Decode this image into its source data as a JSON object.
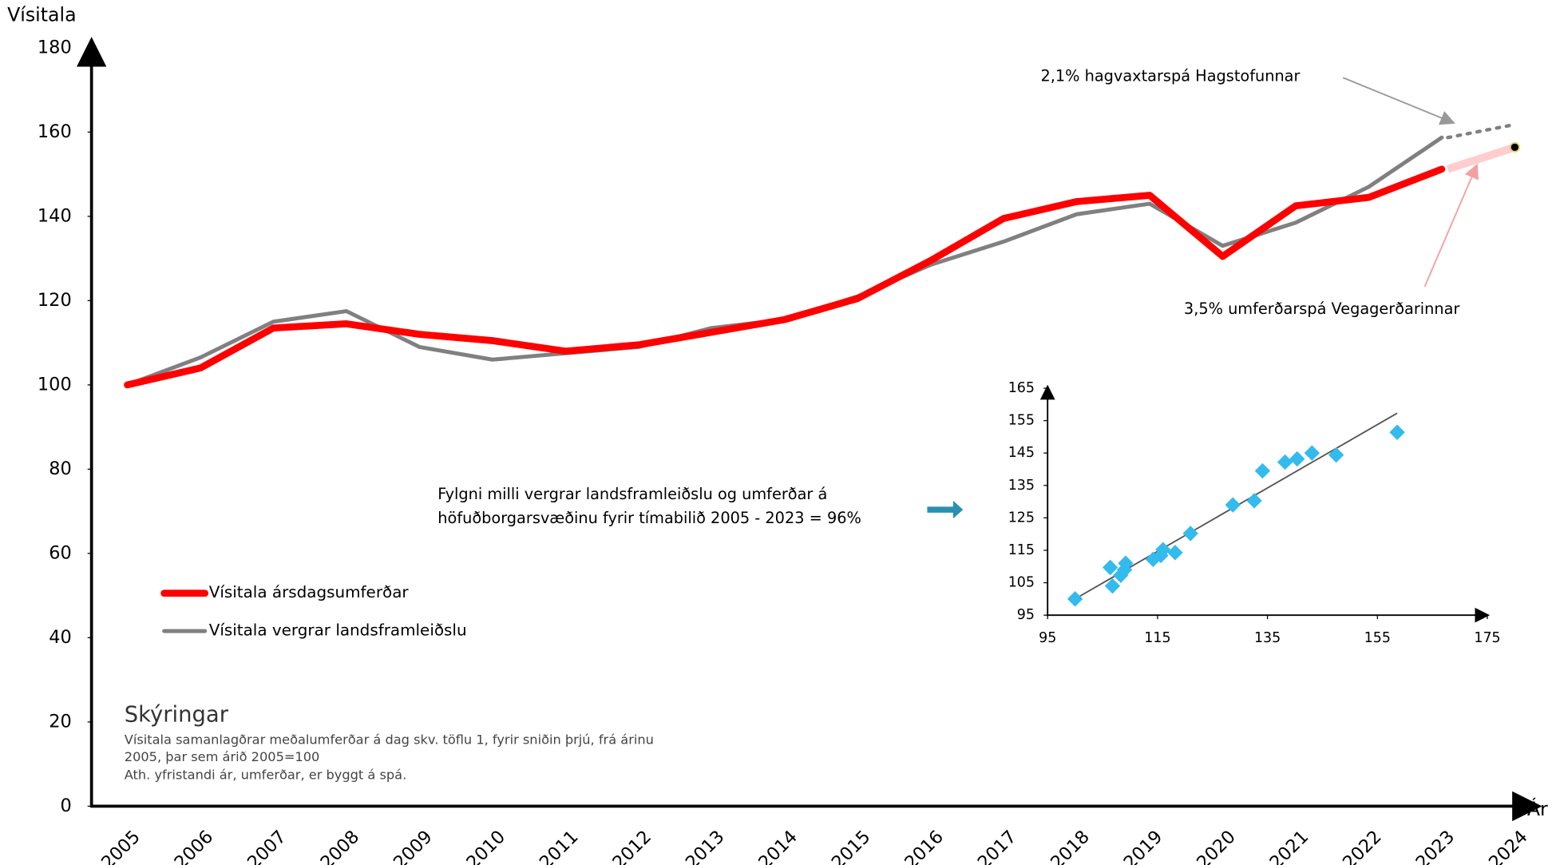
{
  "chart_data": [
    {
      "type": "line",
      "y_label": "Vísitala",
      "x_label": "Ár",
      "categories": [
        "2005",
        "2006",
        "2007",
        "2008",
        "2009",
        "2010",
        "2011",
        "2012",
        "2013",
        "2014",
        "2015",
        "2016",
        "2017",
        "2018",
        "2019",
        "2020",
        "2021",
        "2022",
        "2023",
        "2024"
      ],
      "ylim": [
        0,
        180
      ],
      "yticks": [
        0,
        20,
        40,
        60,
        80,
        100,
        120,
        140,
        160,
        180
      ],
      "series": [
        {
          "name": "Vísitala ársdagsumferðar",
          "color": "#ff0000",
          "values": [
            100,
            104,
            113.5,
            114.5,
            112,
            110.5,
            108,
            109.5,
            112.5,
            115.5,
            120.5,
            129.5,
            139.5,
            143.5,
            145,
            130.5,
            142.5,
            144.5,
            151.2,
            null
          ]
        },
        {
          "name": "Vísitala vergrar landsframleiðslu",
          "color": "#808080",
          "values": [
            100,
            106.5,
            115,
            117.5,
            109,
            106,
            107.5,
            109,
            113.5,
            115.5,
            121,
            128.5,
            134,
            140.5,
            143,
            133,
            138.5,
            147,
            158.7,
            null
          ]
        }
      ],
      "forecasts": [
        {
          "label": "3,5% umferðarspá Vegagerðarinnar",
          "color": "#ffc0c0",
          "values": [
            null,
            null,
            null,
            null,
            null,
            null,
            null,
            null,
            null,
            null,
            null,
            null,
            null,
            null,
            null,
            null,
            null,
            null,
            null,
            156.4
          ]
        },
        {
          "label": "2,1% hagvaxtarspá Hagstofunnar",
          "color": "#808080",
          "values": [
            null,
            null,
            null,
            null,
            null,
            null,
            null,
            null,
            null,
            null,
            null,
            null,
            null,
            null,
            null,
            null,
            null,
            null,
            null,
            161.8
          ]
        }
      ],
      "notes_title": "Skýringar",
      "notes": [
        "Vísitala samanlagðrar meðalumferðar á dag  skv. töflu 1, fyrir sniðin  þrjú, frá árinu",
        "2005, þar sem árið 2005=100",
        "Ath. yfristandi ár, umferðar, er byggt á spá."
      ]
    },
    {
      "type": "scatter",
      "color": "#33bbee",
      "annotation": [
        "Fylgni milli vergrar landsframleiðslu og umferðar á",
        "höfuðborgarsvæðinu fyrir tímabilið 2005 - 2023 = 96%"
      ],
      "x": [
        100,
        106.8,
        106.4,
        108.3,
        109.2,
        109,
        114.2,
        115.6,
        116,
        118.2,
        121,
        128.7,
        132.6,
        134.1,
        138.2,
        140.4,
        143.1,
        147.5,
        158.6
      ],
      "y": [
        100,
        104,
        109.7,
        107.3,
        111,
        109,
        112.2,
        113.4,
        115.2,
        114.3,
        120.2,
        129,
        130.3,
        139.5,
        142.2,
        143.2,
        145,
        144.4,
        151.4
      ],
      "trendline": {
        "x": [
          100,
          158.6
        ],
        "y": [
          100,
          157.3
        ],
        "color": "#555555"
      },
      "xlim": [
        95,
        175
      ],
      "xticks": [
        95,
        115,
        135,
        155,
        175
      ],
      "ylim": [
        95,
        165
      ],
      "yticks": [
        95,
        105,
        115,
        125,
        135,
        145,
        155,
        165
      ]
    }
  ]
}
